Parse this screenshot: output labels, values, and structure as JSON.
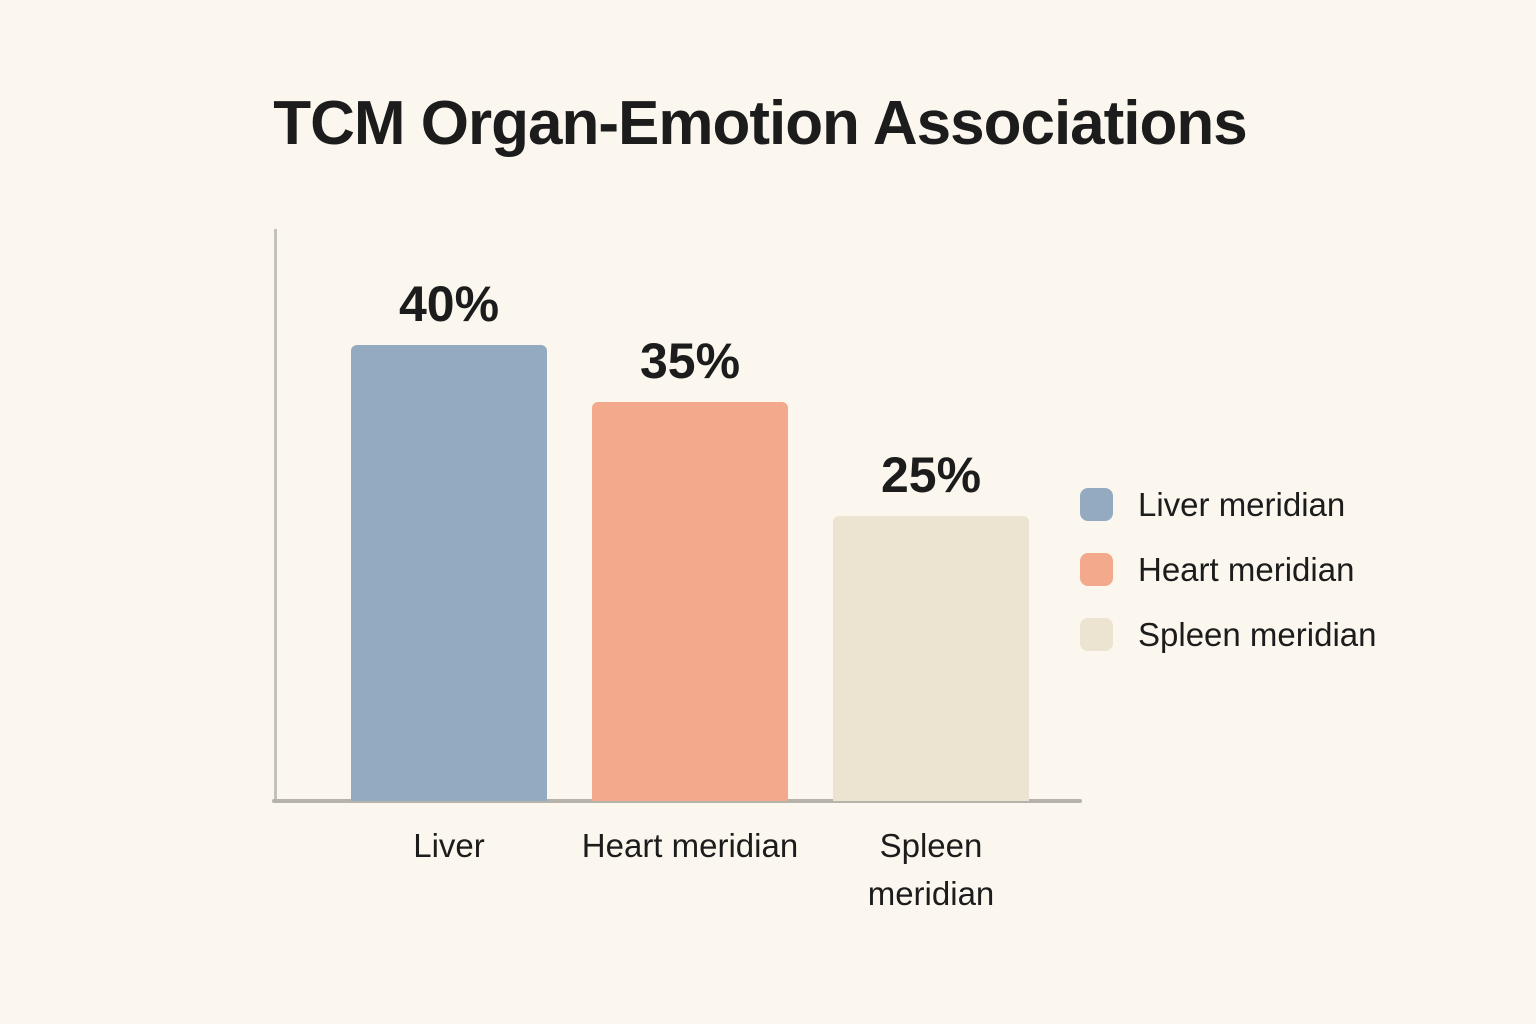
{
  "background_color": "#fbf7ee",
  "text_color": "#1c1c1c",
  "axis_color": "#b8b6ae",
  "header": {
    "title": "TCM Organ-Emotion Associations"
  },
  "chart_data": {
    "type": "bar",
    "title": "TCM Organ-Emotion Associations",
    "categories": [
      "Liver",
      "Heart meridian",
      "Spleen meridian"
    ],
    "values": [
      40,
      35,
      25
    ],
    "value_labels": [
      "40%",
      "35%",
      "25%"
    ],
    "unit": "%",
    "xlabel": "",
    "ylabel": "",
    "ylim": [
      0,
      50
    ],
    "grid": false,
    "bars": [
      {
        "category": "Liver",
        "value": 40,
        "label": "40%",
        "color": "#93aac0",
        "name": "bar-liver"
      },
      {
        "category": "Heart meridian",
        "value": 35,
        "label": "35%",
        "color": "#f3a98b",
        "name": "bar-heart-meridian"
      },
      {
        "category": "Spleen meridian",
        "value": 25,
        "label": "25%",
        "color": "#ece3d1",
        "name": "bar-spleen-meridian"
      }
    ],
    "legend": {
      "position": "right",
      "items": [
        {
          "label": "Liver meridian",
          "color": "#93aac0"
        },
        {
          "label": "Heart meridian",
          "color": "#f3a98b"
        },
        {
          "label": "Spleen meridian",
          "color": "#ece3d1"
        }
      ]
    }
  }
}
